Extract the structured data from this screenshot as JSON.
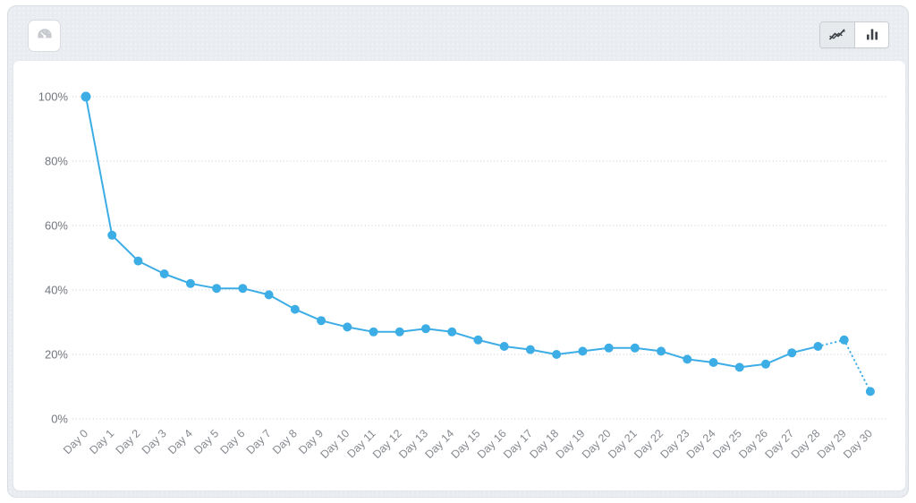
{
  "toolbar": {
    "dashboard_button": {
      "icon": "gauge-icon"
    },
    "chart_type_toggle": {
      "options": [
        {
          "id": "line",
          "icon": "line-chart-icon",
          "active": true
        },
        {
          "id": "bar",
          "icon": "bar-chart-icon",
          "active": false
        }
      ]
    }
  },
  "colors": {
    "line": "#3dade6",
    "grid": "#d7dbdf",
    "y_label": "#72777e",
    "x_label": "#85898f",
    "icon_dark": "#3e434a",
    "icon_light_gray": "#c6c9ce"
  },
  "chart_data": {
    "type": "line",
    "title": "",
    "xlabel": "",
    "ylabel": "",
    "x_labels": [
      "Day 0",
      "Day 1",
      "Day 2",
      "Day 3",
      "Day 4",
      "Day 5",
      "Day 6",
      "Day 7",
      "Day 8",
      "Day 9",
      "Day 10",
      "Day 11",
      "Day 12",
      "Day 13",
      "Day 14",
      "Day 15",
      "Day 16",
      "Day 17",
      "Day 18",
      "Day 19",
      "Day 20",
      "Day 21",
      "Day 22",
      "Day 23",
      "Day 24",
      "Day 25",
      "Day 26",
      "Day 27",
      "Day 28",
      "Day 29",
      "Day 30"
    ],
    "values": [
      100,
      57,
      49,
      45,
      42,
      40.5,
      40.5,
      38.5,
      34,
      30.5,
      28.5,
      27,
      27,
      28,
      27,
      24.5,
      22.5,
      21.5,
      20,
      21,
      22,
      22,
      21,
      18.5,
      17.5,
      16,
      17,
      20.5,
      22.5,
      24.5,
      8.5
    ],
    "ylim": [
      0,
      100
    ],
    "yticks": [
      0,
      20,
      40,
      60,
      80,
      100
    ],
    "ytick_labels": [
      "0%",
      "20%",
      "40%",
      "60%",
      "80%",
      "100%"
    ],
    "grid": "horizontal-dotted",
    "legend": "none",
    "line_color": "#3dade6",
    "marker": "circle",
    "dotted_tail_start_index": 28
  }
}
